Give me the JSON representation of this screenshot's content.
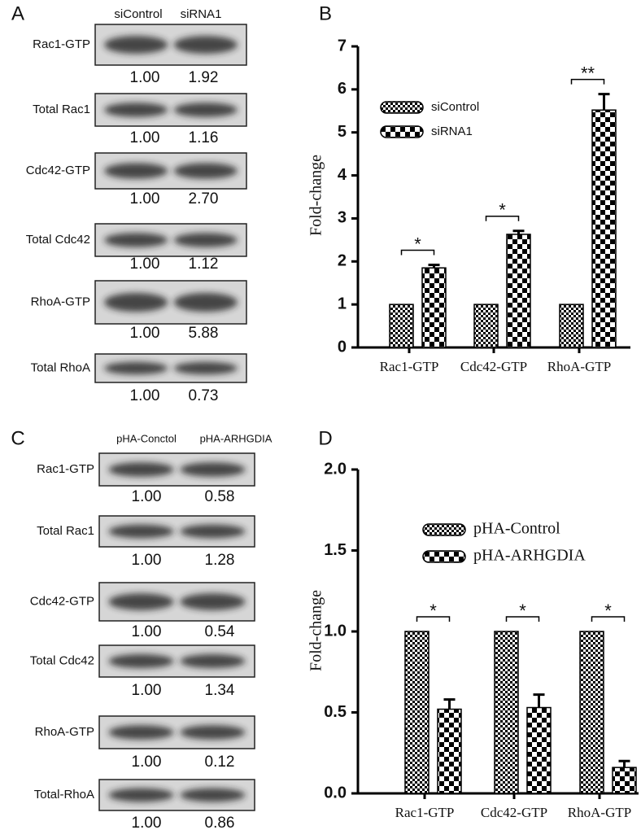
{
  "chart_data": [
    {
      "type": "bar",
      "panel": "B",
      "y_label": "Fold-change",
      "categories": [
        "Rac1-GTP",
        "Cdc42-GTP",
        "RhoA-GTP"
      ],
      "series": [
        {
          "name": "siControl",
          "color": "#000000",
          "values": [
            1,
            1,
            1
          ]
        },
        {
          "name": "siRNA1",
          "color": "#000000",
          "values": [
            1.85,
            2.63,
            5.52
          ],
          "errors": [
            0.07,
            0.08,
            0.37
          ]
        }
      ],
      "annotations": [
        "*",
        "*",
        "**"
      ],
      "ylim": [
        0,
        7
      ],
      "yticks": [
        0,
        1,
        2,
        3,
        4,
        5,
        6,
        7
      ],
      "legend": "upper left"
    },
    {
      "type": "bar",
      "panel": "D",
      "y_label": "Fold-change",
      "categories": [
        "Rac1-GTP",
        "Cdc42-GTP",
        "RhoA-GTP"
      ],
      "series": [
        {
          "name": "pHA-Control",
          "color": "#000000",
          "values": [
            1,
            1,
            1
          ]
        },
        {
          "name": "pHA-ARHGDIA",
          "color": "#000000",
          "values": [
            0.52,
            0.53,
            0.16
          ],
          "errors": [
            0.06,
            0.08,
            0.04
          ]
        }
      ],
      "annotations": [
        "*",
        "*",
        "*"
      ],
      "ylim": [
        0,
        2
      ],
      "yticks": [
        {
          "value": 0,
          "label": "0.0"
        },
        {
          "value": 0.5,
          "label": "0.5"
        },
        {
          "value": 1,
          "label": "1.0"
        },
        {
          "value": 1.5,
          "label": "1.5"
        },
        {
          "value": 2,
          "label": "2.0"
        }
      ],
      "legend": "upper center"
    }
  ],
  "blots": [
    {
      "panel": "A",
      "lanes": [
        "siControl",
        "siRNA1"
      ],
      "rows": [
        {
          "label": "Rac1-GTP",
          "values": [
            "1.00",
            "1.92"
          ]
        },
        {
          "label": "Total Rac1",
          "values": [
            "1.00",
            "1.16"
          ]
        },
        {
          "label": "Cdc42-GTP",
          "values": [
            "1.00",
            "2.70"
          ]
        },
        {
          "label": "Total Cdc42",
          "values": [
            "1.00",
            "1.12"
          ]
        },
        {
          "label": "RhoA-GTP",
          "values": [
            "1.00",
            "5.88"
          ]
        },
        {
          "label": "Total RhoA",
          "values": [
            "1.00",
            "0.73"
          ]
        }
      ]
    },
    {
      "panel": "C",
      "lanes": [
        "pHA-Conctol",
        "pHA-ARHGDIA"
      ],
      "rows": [
        {
          "label": "Rac1-GTP",
          "values": [
            "1.00",
            "0.58"
          ]
        },
        {
          "label": "Total Rac1",
          "values": [
            "1.00",
            "1.28"
          ]
        },
        {
          "label": "Cdc42-GTP",
          "values": [
            "1.00",
            "0.54"
          ]
        },
        {
          "label": "Total Cdc42",
          "values": [
            "1.00",
            "1.34"
          ]
        },
        {
          "label": "RhoA-GTP",
          "values": [
            "1.00",
            "0.12"
          ]
        },
        {
          "label": "Total-RhoA",
          "values": [
            "1.00",
            "0.86"
          ]
        }
      ]
    }
  ]
}
